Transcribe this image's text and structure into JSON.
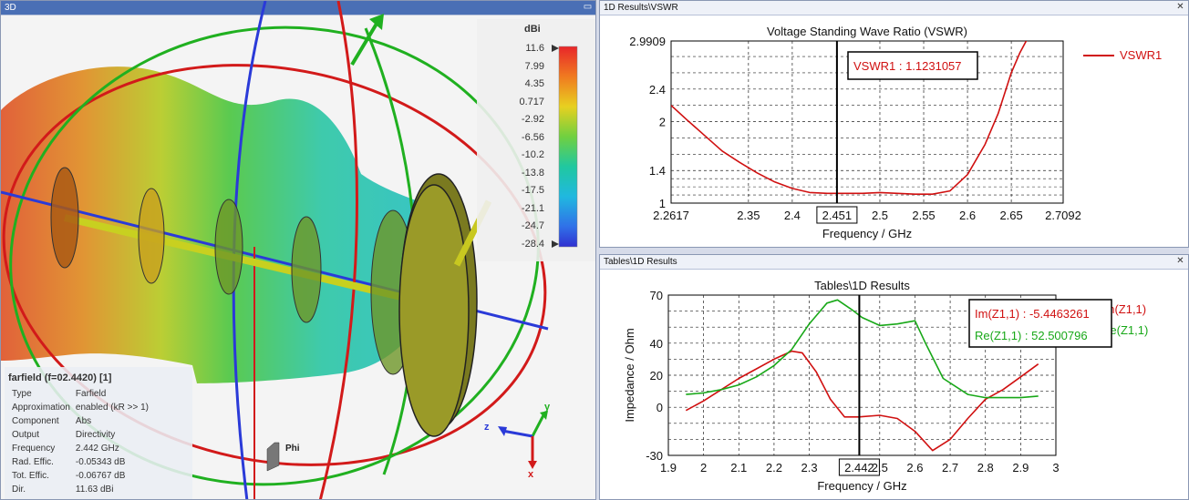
{
  "panel3d": {
    "title": "3D",
    "colorbar": {
      "unit": "dBi",
      "ticks": [
        "11.6",
        "7.99",
        "4.35",
        "0.717",
        "-2.92",
        "-6.56",
        "-10.2",
        "-13.8",
        "-17.5",
        "-21.1",
        "-24.7",
        "-28.4"
      ]
    },
    "info": {
      "header": "farfield (f=02.4420) [1]",
      "rows": [
        {
          "k": "Type",
          "v": "Farfield"
        },
        {
          "k": "Approximation",
          "v": "enabled (kR >> 1)"
        },
        {
          "k": "Component",
          "v": "Abs"
        },
        {
          "k": "Output",
          "v": "Directivity"
        },
        {
          "k": "Frequency",
          "v": "2.442 GHz"
        },
        {
          "k": "Rad. Effic.",
          "v": "-0.05343 dB"
        },
        {
          "k": "Tot. Effic.",
          "v": "-0.06767 dB"
        },
        {
          "k": "Dir.",
          "v": "11.63 dBi"
        }
      ]
    },
    "axes": {
      "x": "x",
      "y": "y",
      "z": "z",
      "phi": "Phi"
    }
  },
  "vswr_panel": {
    "title": "1D Results\\VSWR",
    "close": "✕"
  },
  "tables_panel": {
    "title": "Tables\\1D Results",
    "close": "✕"
  },
  "chart_data": [
    {
      "type": "line",
      "title": "Voltage Standing Wave Ratio (VSWR)",
      "xlabel": "Frequency / GHz",
      "ylabel": "",
      "xlim": [
        2.2617,
        2.7092
      ],
      "ylim": [
        1,
        2.9909
      ],
      "xticks": [
        "2.2617",
        "2.35",
        "2.4",
        "2.451",
        "2.5",
        "2.55",
        "2.6",
        "2.65",
        "2.7092"
      ],
      "yticks": [
        "2.9909",
        "2.4",
        "2",
        "1.4",
        "1"
      ],
      "marker": {
        "x": 2.451,
        "label": "2.451",
        "readout": "VSWR1 : 1.1231057"
      },
      "grid": true,
      "legend": "right",
      "series": [
        {
          "name": "VSWR1",
          "color": "#d01010",
          "x": [
            2.2617,
            2.28,
            2.3,
            2.32,
            2.34,
            2.36,
            2.38,
            2.4,
            2.42,
            2.44,
            2.46,
            2.48,
            2.5,
            2.52,
            2.54,
            2.56,
            2.58,
            2.6,
            2.62,
            2.635,
            2.65,
            2.66,
            2.67
          ],
          "y": [
            2.2,
            2.02,
            1.83,
            1.64,
            1.5,
            1.37,
            1.26,
            1.18,
            1.13,
            1.12,
            1.12,
            1.12,
            1.13,
            1.12,
            1.11,
            1.11,
            1.15,
            1.35,
            1.72,
            2.1,
            2.6,
            2.85,
            3.05
          ]
        }
      ]
    },
    {
      "type": "line",
      "title": "Tables\\1D Results",
      "xlabel": "Frequency / GHz",
      "ylabel": "Impedance / Ohm",
      "xlim": [
        1.9,
        3.0
      ],
      "ylim": [
        -30,
        70
      ],
      "xticks": [
        "1.9",
        "2",
        "2.1",
        "2.2",
        "2.3",
        "2.442",
        "2.5",
        "2.6",
        "2.7",
        "2.8",
        "2.9",
        "3"
      ],
      "yticks": [
        "70",
        "40",
        "20",
        "0",
        "-30"
      ],
      "marker": {
        "x": 2.442,
        "label": "2.442"
      },
      "readouts": [
        "Im(Z1,1) : -5.4463261",
        "Re(Z1,1) : 52.500796"
      ],
      "grid": true,
      "legend": "right",
      "series": [
        {
          "name": "Im(Z1,1)",
          "color": "#d01010",
          "x": [
            1.95,
            2.0,
            2.05,
            2.1,
            2.15,
            2.2,
            2.25,
            2.28,
            2.32,
            2.36,
            2.4,
            2.44,
            2.5,
            2.55,
            2.6,
            2.65,
            2.7,
            2.75,
            2.8,
            2.85,
            2.9,
            2.95
          ],
          "y": [
            -2,
            4,
            11,
            18,
            24,
            30,
            35,
            34,
            22,
            5,
            -6,
            -6,
            -5,
            -7,
            -15,
            -27,
            -20,
            -7,
            5,
            11,
            19,
            27
          ]
        },
        {
          "name": "Re(Z1,1)",
          "color": "#18a818",
          "x": [
            1.95,
            2.0,
            2.05,
            2.1,
            2.15,
            2.2,
            2.25,
            2.3,
            2.35,
            2.38,
            2.42,
            2.45,
            2.5,
            2.55,
            2.6,
            2.63,
            2.68,
            2.75,
            2.8,
            2.85,
            2.9,
            2.95
          ],
          "y": [
            8,
            9,
            11,
            14,
            19,
            26,
            36,
            52,
            65,
            67,
            61,
            56,
            51,
            52,
            54,
            40,
            18,
            8,
            6,
            6,
            6,
            7
          ]
        }
      ]
    }
  ]
}
